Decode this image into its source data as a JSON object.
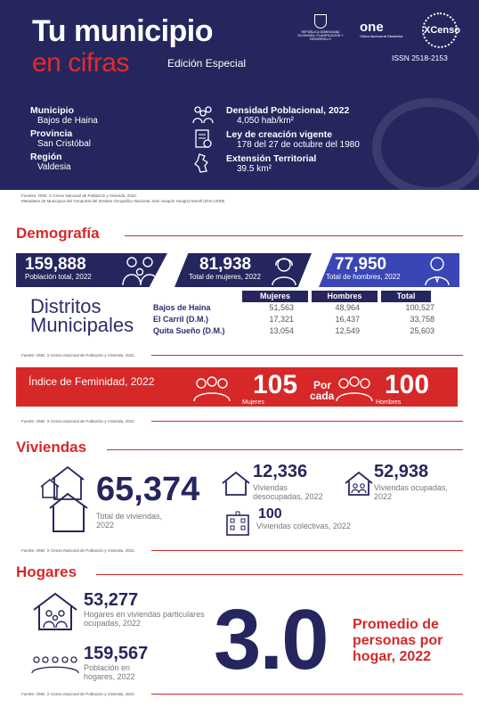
{
  "header": {
    "title_line1": "Tu municipio",
    "title_line2": "en cifras",
    "edition": "Edición Especial",
    "issn": "ISSN 2518-2153",
    "logo_one": "one",
    "logo_one_sub": "Oficina Nacional de Estadística",
    "logo_gov": "REPÚBLICA DOMINICANA ECONOMÍA, PLANIFICACIÓN Y DESARROLLO",
    "logo_censo": "XCenso",
    "municipio_label": "Municipio",
    "municipio_value": "Bajos de Haina",
    "provincia_label": "Provincia",
    "provincia_value": "San Cristóbal",
    "region_label": "Región",
    "region_value": "Valdesia",
    "densidad_label": "Densidad Poblacional, 2022",
    "densidad_value": "4,050 hab/km²",
    "ley_label": "Ley de creación vigente",
    "ley_value": "178 del 27 de octubre del 1980",
    "extension_label": "Extensión Territorial",
    "extension_value": "39.5 km²"
  },
  "sources": {
    "header_src1": "Fuentes: ONE. X Censo Nacional de Población y Vivienda, 2022.",
    "header_src2": "Metadatos de Municipios del Geoportal del Instituto Geográfico Nacional José Joaquín Hungría Morell (IGN-JJHM)",
    "censo": "Fuente: ONE. X Censo Nacional de Población y Vivienda, 2022."
  },
  "demografia": {
    "title": "Demografía",
    "poblacion_total": "159,888",
    "poblacion_total_label": "Población total, 2022",
    "mujeres": "81,938",
    "mujeres_label": "Total de mujeres, 2022",
    "hombres": "77,950",
    "hombres_label": "Total de hombres, 2022",
    "dm_title": "Distritos Municipales",
    "dm_headers": [
      "Mujeres",
      "Hombres",
      "Total"
    ],
    "dm_rows": [
      {
        "name": "Bajos de Haina",
        "mujeres": "51,563",
        "hombres": "48,964",
        "total": "100,527"
      },
      {
        "name": "El Carril (D.M.)",
        "mujeres": "17,321",
        "hombres": "16,437",
        "total": "33,758"
      },
      {
        "name": "Quita Sueño (D.M.)",
        "mujeres": "13,054",
        "hombres": "12,549",
        "total": "25,603"
      }
    ],
    "feminidad_title": "Índice de Feminidad, 2022",
    "feminidad_mujeres": "105",
    "feminidad_mujeres_label": "Mujeres",
    "feminidad_por": "Por",
    "feminidad_cada": "cada",
    "feminidad_hombres": "100",
    "feminidad_hombres_label": "Hombres"
  },
  "viviendas": {
    "title": "Viviendas",
    "total": "65,374",
    "total_label": "Total de viviendas, 2022",
    "desocupadas": "12,336",
    "desocupadas_label": "Viviendas desocupadas, 2022",
    "ocupadas": "52,938",
    "ocupadas_label": "Viviendas ocupadas, 2022",
    "colectivas": "100",
    "colectivas_label": "Viviendas colectivas, 2022"
  },
  "hogares": {
    "title": "Hogares",
    "hogares": "53,277",
    "hogares_label": "Hogares en viviendas particulares ocupadas, 2022",
    "poblacion": "159,567",
    "poblacion_label": "Población en hogares, 2022",
    "promedio": "3.0",
    "promedio_label": "Promedio de personas por hogar, 2022"
  },
  "colors": {
    "navy": "#25265e",
    "red": "#d62828",
    "blue": "#3a46b5"
  }
}
